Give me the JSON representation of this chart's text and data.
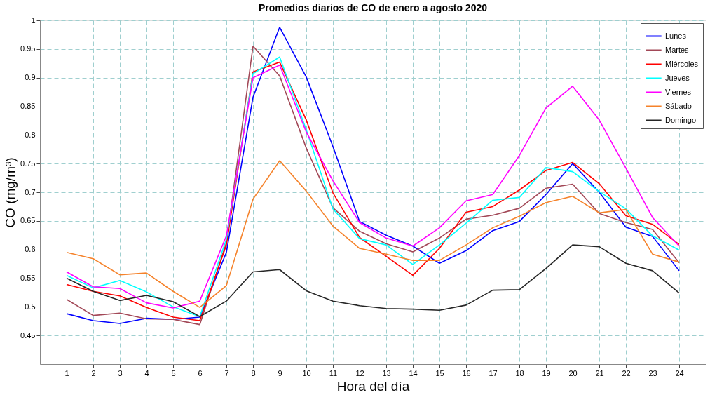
{
  "chart_data": {
    "type": "line",
    "title": "Promedios diarios de CO de enero a agosto 2020",
    "xlabel": "Hora del día",
    "ylabel": "CO (mg/m³)",
    "x": [
      1,
      2,
      3,
      4,
      5,
      6,
      7,
      8,
      9,
      10,
      11,
      12,
      13,
      14,
      15,
      16,
      17,
      18,
      19,
      20,
      21,
      22,
      23,
      24
    ],
    "xlim": [
      0,
      25
    ],
    "xticks": [
      1,
      2,
      3,
      4,
      5,
      6,
      7,
      8,
      9,
      10,
      11,
      12,
      13,
      14,
      15,
      16,
      17,
      18,
      19,
      20,
      21,
      22,
      23,
      24
    ],
    "ylim": [
      0.4,
      1
    ],
    "yticks": [
      0.45,
      0.5,
      0.55,
      0.6,
      0.65,
      0.7,
      0.75,
      0.8,
      0.85,
      0.9,
      0.95,
      1
    ],
    "grid": true,
    "legend": "top right",
    "line_style": "solid",
    "marker": "none",
    "series": [
      {
        "name": "Lunes",
        "color": "#0000ff",
        "values": [
          0.488,
          0.476,
          0.471,
          0.48,
          0.478,
          0.482,
          0.595,
          0.866,
          0.988,
          0.901,
          0.78,
          0.649,
          0.625,
          0.606,
          0.576,
          0.598,
          0.633,
          0.649,
          0.696,
          0.75,
          0.7,
          0.639,
          0.623,
          0.563
        ]
      },
      {
        "name": "Martes",
        "color": "#a24857",
        "values": [
          0.513,
          0.485,
          0.489,
          0.479,
          0.478,
          0.469,
          0.612,
          0.955,
          0.903,
          0.777,
          0.673,
          0.632,
          0.61,
          0.596,
          0.62,
          0.653,
          0.66,
          0.672,
          0.707,
          0.714,
          0.663,
          0.647,
          0.635,
          0.577
        ]
      },
      {
        "name": "Miércoles",
        "color": "#ff0000",
        "values": [
          0.539,
          0.527,
          0.519,
          0.499,
          0.482,
          0.476,
          0.608,
          0.91,
          0.927,
          0.826,
          0.699,
          0.621,
          0.588,
          0.555,
          0.602,
          0.665,
          0.675,
          0.704,
          0.738,
          0.752,
          0.715,
          0.659,
          0.644,
          0.609
        ]
      },
      {
        "name": "Jueves",
        "color": "#00ffff",
        "values": [
          0.555,
          0.533,
          0.546,
          0.526,
          0.5,
          0.483,
          0.618,
          0.907,
          0.936,
          0.809,
          0.671,
          0.619,
          0.608,
          0.574,
          0.608,
          0.646,
          0.686,
          0.691,
          0.743,
          0.736,
          0.701,
          0.671,
          0.624,
          0.599
        ]
      },
      {
        "name": "Viernes",
        "color": "#ff00ff",
        "values": [
          0.561,
          0.535,
          0.532,
          0.507,
          0.498,
          0.51,
          0.624,
          0.9,
          0.922,
          0.805,
          0.72,
          0.647,
          0.62,
          0.606,
          0.638,
          0.685,
          0.696,
          0.764,
          0.847,
          0.885,
          0.826,
          0.742,
          0.656,
          0.606
        ]
      },
      {
        "name": "Sábado",
        "color": "#f5822a",
        "values": [
          0.595,
          0.584,
          0.556,
          0.559,
          0.527,
          0.499,
          0.537,
          0.688,
          0.755,
          0.702,
          0.641,
          0.602,
          0.592,
          0.581,
          0.581,
          0.608,
          0.638,
          0.658,
          0.682,
          0.693,
          0.664,
          0.67,
          0.592,
          0.578
        ]
      },
      {
        "name": "Domingo",
        "color": "#262626",
        "values": [
          0.55,
          0.527,
          0.511,
          0.52,
          0.509,
          0.483,
          0.51,
          0.561,
          0.565,
          0.528,
          0.51,
          0.502,
          0.497,
          0.496,
          0.494,
          0.503,
          0.529,
          0.53,
          0.567,
          0.608,
          0.605,
          0.576,
          0.563,
          0.524
        ]
      }
    ]
  }
}
